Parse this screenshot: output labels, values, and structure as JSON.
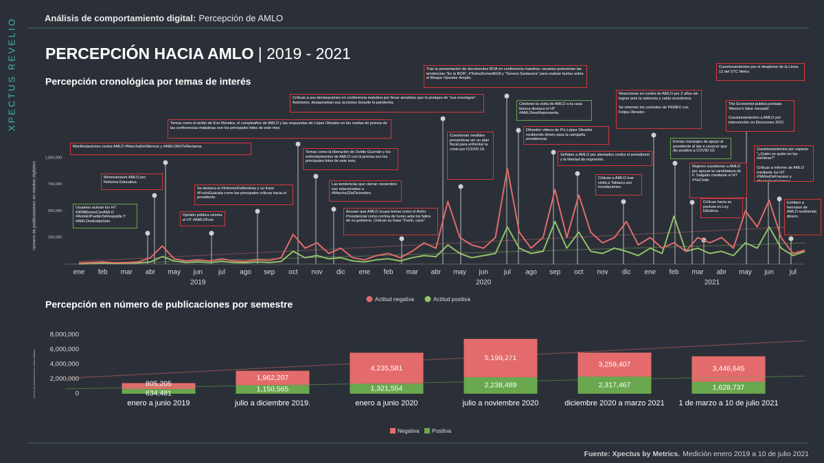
{
  "brand": "XPECTUS REVELIO",
  "header": {
    "label": "Análisis de comportamiento digital:",
    "topic": "Percepción de AMLO"
  },
  "title": {
    "main": "PERCEPCIÓN HACIA AMLO",
    "period": "| 2019 - 2021"
  },
  "footer": {
    "source": "Fuente: Xpectus by Metrics.",
    "note": "Medición enero 2019 a 10 de julio 2021"
  },
  "chart_data": [
    {
      "type": "line",
      "title": "Percepción cronológica por temas de interés",
      "y_label": "número de publicaciones en medios digitales",
      "categories": [
        "ene",
        null,
        "feb",
        null,
        "mar",
        null,
        "abr",
        null,
        "may",
        null,
        "jun",
        null,
        "jul",
        null,
        "ago",
        null,
        "sep",
        null,
        "oct",
        null,
        "nov",
        null,
        "dic",
        null,
        "ene",
        null,
        "feb",
        null,
        "mar",
        null,
        "abr",
        null,
        "may",
        null,
        "jun",
        null,
        "jul",
        null,
        "ago",
        null,
        "sep",
        null,
        "oct",
        null,
        "nov",
        null,
        "dic",
        null,
        "ene",
        null,
        "feb",
        null,
        "mar",
        null,
        "abr",
        null,
        "may",
        null,
        "jun",
        null,
        "jul",
        null
      ],
      "year_labels": [
        "2019",
        "2020",
        "2021"
      ],
      "series": [
        {
          "name": "Actitud negativa",
          "color": "#e36b6b",
          "values": [
            10000,
            15000,
            20000,
            12000,
            15000,
            20000,
            60000,
            170000,
            50000,
            30000,
            40000,
            30000,
            50000,
            30000,
            25000,
            40000,
            35000,
            60000,
            280000,
            150000,
            200000,
            100000,
            150000,
            60000,
            40000,
            80000,
            100000,
            60000,
            120000,
            200000,
            150000,
            590000,
            250000,
            180000,
            150000,
            250000,
            900000,
            300000,
            150000,
            250000,
            700000,
            250000,
            650000,
            300000,
            200000,
            250000,
            400000,
            180000,
            250000,
            150000,
            200000,
            120000,
            250000,
            200000,
            250000,
            150000,
            500000,
            350000,
            600000,
            250000,
            100000,
            130000
          ]
        },
        {
          "name": "Actitud positiva",
          "color": "#93c36a",
          "values": [
            5000,
            8000,
            10000,
            6000,
            8000,
            10000,
            20000,
            70000,
            30000,
            15000,
            20000,
            15000,
            25000,
            15000,
            12000,
            20000,
            15000,
            25000,
            120000,
            60000,
            80000,
            50000,
            60000,
            30000,
            20000,
            40000,
            50000,
            30000,
            60000,
            80000,
            70000,
            180000,
            100000,
            60000,
            80000,
            100000,
            350000,
            150000,
            100000,
            120000,
            400000,
            150000,
            300000,
            120000,
            100000,
            150000,
            120000,
            80000,
            150000,
            100000,
            450000,
            120000,
            150000,
            100000,
            120000,
            80000,
            200000,
            150000,
            350000,
            150000,
            80000,
            120000
          ]
        }
      ],
      "ylim": [
        0,
        1100000
      ],
      "yticks": [
        {
          "value": 250000,
          "label": "250,000"
        },
        {
          "value": 500000,
          "label": "500,000"
        },
        {
          "value": 750000,
          "label": "750,000"
        },
        {
          "value": 1000000,
          "label": "1,000,000"
        }
      ],
      "trendline": true,
      "annotations": [
        {
          "text": "Usuarios activan los HT #30MillonesConAMLO #AmloElPuebloTeRespalda Y #AMLOnoEstásSolo.",
          "color": "#6aa84f"
        },
        {
          "text": "Memorándum AMLO por Reforma Educativa.",
          "color": "#d9363a"
        },
        {
          "text": "Manifestaciones contra AMLO #MarchaDelSilencio y #AMLOMXTeReclama.",
          "color": "#d9363a"
        },
        {
          "text": "Temas como el arribo de Evo Morales, el cumpleaños de AMLO y las respuestas de López Obrador en las ruedas de prensa de las conferencias matutinas son los principales hitos de este mes.",
          "color": "#d9363a"
        },
        {
          "text": "Se destaca el #InformeDeMentiras y su frase #FuchiGuácala como las principales críticas hacia el presidente.",
          "color": "#d9363a"
        },
        {
          "text": "Opinión pública retoma el HT #AMLOFest.",
          "color": "#d9363a"
        },
        {
          "text": "Críticas a sus declaraciones en conferencia matutina por llevar amuletos que lo protejan de \"sus enemigos\". Asimismo, desaprueban sus acciones durante la pandemia.",
          "color": "#d9363a"
        },
        {
          "text": "Temas como la liberación de Ovidio Guzmán y los enfrentamientos de AMLO con la prensa son los principales hitos de este mes.",
          "color": "#d9363a"
        },
        {
          "text": "Las tendencias que cierran noviembre son relacionadas a #Marcha1DeDiciembre.",
          "color": "#d9363a"
        },
        {
          "text": "Acusan que AMLO ocupa temas como el Avión Presidencial como cortina de humo ante los fallos de su gobierno. Critican su frase \"Fuchi, caca\".",
          "color": "#d9363a"
        },
        {
          "text": "Cuestionan medidas preventivas sin un plan fiscal para enfrentar la crisis por COVID-19.",
          "color": "#d9363a"
        },
        {
          "text": "Tras la presentación de documentos BOA en conferencia matutina; usuarios posicionan las tendencias \"Es la BOA\", #TodosSomosBOA y \"Sonora Santanera\" para realizar burlas sobre el Bloque Opositor Amplio.",
          "color": "#d9363a"
        },
        {
          "text": "Celebran la visita de AMLO a la casa blanca destaca el HT #AMLOnosRepresenta.",
          "color": "#6aa84f"
        },
        {
          "text": "Difunden videos de Pío López Obrador recibiendo dinero para la campaña presidencial.",
          "color": "#d9363a"
        },
        {
          "text": "Reacciones en contra de AMLO por 2 años sin logros ante la violencia y caída económica.\n\nSe retoman los contratos de PEMEX con Felipa Obrador.",
          "color": "#d9363a"
        },
        {
          "text": "Señalan a AMLO por atentados contra el periodismo y la libertad de expresión.",
          "color": "#d9363a"
        },
        {
          "text": "Critican a AMLO tras visita a Tabasco por inundaciones.",
          "color": "#d9363a"
        },
        {
          "text": "Envían mensajes de apoyo al presidente al dar a conocer que dio positivo a COVID-19.",
          "color": "#6aa84f"
        },
        {
          "text": "Mujeres cuestionan a AMLO por apoyar la candidatura de F. Salgado mediante el HT #YaChole.",
          "color": "#d9363a"
        },
        {
          "text": "Críticas hacia su postura en Ley Eléctrica.",
          "color": "#d9363a"
        },
        {
          "text": "Cuestionamientos por el desplome de la Línea 12 del STC Metro.",
          "color": "#d9363a"
        },
        {
          "text": "The Economist publica portada 'Mexico's false messiah'.\n\nCuestionamientos a AMLO por intervención en Elecciones 2021.",
          "color": "#d9363a"
        },
        {
          "text": "Cuestionamientos por espacio \"¿Quién es quién en las mentiras?\"\n\nCríticas a Informe de AMLO mediante los HT #3AñosDeFracaso y #NadaQueCelebrar.",
          "color": "#d9363a"
        },
        {
          "text": "Exhiben a hermano de AMLO recibiendo dinero.",
          "color": "#d9363a"
        }
      ]
    },
    {
      "type": "bar",
      "stacked": true,
      "title": "Percepción en número de publicaciones por semestre",
      "y_label": "número de publicaciones en medios digitales",
      "categories": [
        "enero a junio 2019",
        "julio a diciembre 2019.",
        "enero a junio 2020",
        "julio a noviembre 2020",
        "diciembre 2020 a marzo 2021",
        "1 de marzo a 10 de julio 2021"
      ],
      "series": [
        {
          "name": "Negativa",
          "color": "#e36b6b",
          "values": [
            805205,
            1962207,
            4235581,
            5199271,
            3259407,
            3446645
          ],
          "value_labels": [
            "805,205",
            "1,962,207",
            "4,235,581",
            "5,199,271",
            "3,259,407",
            "3,446,645"
          ]
        },
        {
          "name": "Positiva",
          "color": "#6aa84f",
          "values": [
            634481,
            1150565,
            1321554,
            2238489,
            2317467,
            1628737
          ],
          "value_labels": [
            "634,481",
            "1,150,565",
            "1,321,554",
            "2,238,489",
            "2,317,467",
            "1,628,737"
          ]
        }
      ],
      "ylim": [
        0,
        8000000
      ],
      "yticks": [
        0,
        {
          "value": 2000000,
          "label": "2,000,000"
        },
        {
          "value": 4000000,
          "label": "4,000,000"
        },
        {
          "value": 6000000,
          "label": "6,000,000"
        },
        {
          "value": 8000000,
          "label": "8,000,000"
        }
      ],
      "trendline": true
    }
  ]
}
